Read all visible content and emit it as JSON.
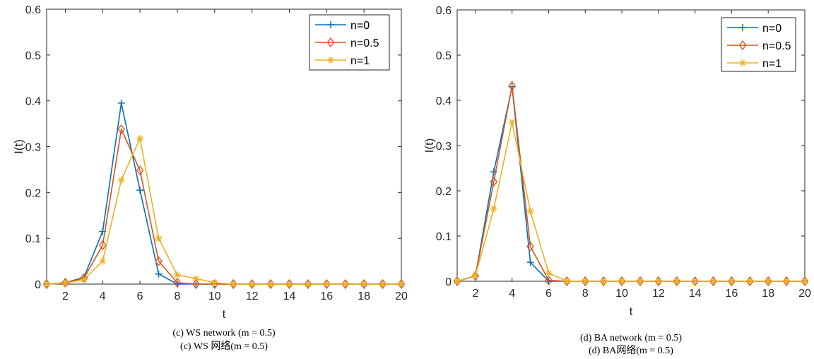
{
  "colors": {
    "n0": "#0072bd",
    "n05": "#d95319",
    "n1": "#edb120",
    "axis": "#262626"
  },
  "chart_data": [
    {
      "type": "line",
      "caption_en": "(c) WS network  (m = 0.5)",
      "caption_zh": "(c) WS 网络(m = 0.5)",
      "xlabel": "t",
      "ylabel": "I(t)",
      "xlim": [
        1,
        20
      ],
      "ylim": [
        0,
        0.6
      ],
      "xticks": [
        2,
        4,
        6,
        8,
        10,
        12,
        14,
        16,
        18,
        20
      ],
      "yticks": [
        0,
        0.1,
        0.2,
        0.3,
        0.4,
        0.5,
        0.6
      ],
      "legend_position": "top-right",
      "x": [
        1,
        2,
        3,
        4,
        5,
        6,
        7,
        8,
        9,
        10,
        11,
        12,
        13,
        14,
        15,
        16,
        17,
        18,
        19,
        20
      ],
      "series": [
        {
          "name": "n=0",
          "color": "#0072bd",
          "marker": "plus",
          "values": [
            0,
            0.003,
            0.015,
            0.115,
            0.395,
            0.205,
            0.022,
            0,
            0,
            0,
            0,
            0,
            0,
            0,
            0,
            0,
            0,
            0,
            0,
            0
          ]
        },
        {
          "name": "n=0.5",
          "color": "#d95319",
          "marker": "diamond",
          "values": [
            0,
            0.003,
            0.013,
            0.085,
            0.338,
            0.248,
            0.05,
            0.003,
            0,
            0,
            0,
            0,
            0,
            0,
            0,
            0,
            0,
            0,
            0,
            0
          ]
        },
        {
          "name": "n=1",
          "color": "#edb120",
          "marker": "star",
          "values": [
            0,
            0.002,
            0.01,
            0.05,
            0.227,
            0.318,
            0.1,
            0.02,
            0.012,
            0.003,
            0,
            0,
            0,
            0,
            0,
            0,
            0,
            0,
            0,
            0
          ]
        }
      ]
    },
    {
      "type": "line",
      "caption_en": "(d) BA network  (m = 0.5)",
      "caption_zh": "(d) BA网络(m = 0.5)",
      "xlabel": "t",
      "ylabel": "I(t)",
      "xlim": [
        1,
        20
      ],
      "ylim": [
        0,
        0.6
      ],
      "xticks": [
        2,
        4,
        6,
        8,
        10,
        12,
        14,
        16,
        18,
        20
      ],
      "yticks": [
        0,
        0.1,
        0.2,
        0.3,
        0.4,
        0.5,
        0.6
      ],
      "legend_position": "top-right",
      "x": [
        1,
        2,
        3,
        4,
        5,
        6,
        7,
        8,
        9,
        10,
        11,
        12,
        13,
        14,
        15,
        16,
        17,
        18,
        19,
        20
      ],
      "series": [
        {
          "name": "n=0",
          "color": "#0072bd",
          "marker": "plus",
          "values": [
            0,
            0.012,
            0.242,
            0.43,
            0.042,
            0,
            0,
            0,
            0,
            0,
            0,
            0,
            0,
            0,
            0,
            0,
            0,
            0,
            0,
            0
          ]
        },
        {
          "name": "n=0.5",
          "color": "#d95319",
          "marker": "diamond",
          "values": [
            0,
            0.012,
            0.22,
            0.432,
            0.077,
            0.002,
            0,
            0,
            0,
            0,
            0,
            0,
            0,
            0,
            0,
            0,
            0,
            0,
            0,
            0
          ]
        },
        {
          "name": "n=1",
          "color": "#edb120",
          "marker": "star",
          "values": [
            0,
            0.013,
            0.16,
            0.352,
            0.155,
            0.018,
            0,
            0,
            0,
            0,
            0,
            0,
            0,
            0,
            0,
            0,
            0,
            0,
            0,
            0
          ]
        }
      ]
    }
  ]
}
